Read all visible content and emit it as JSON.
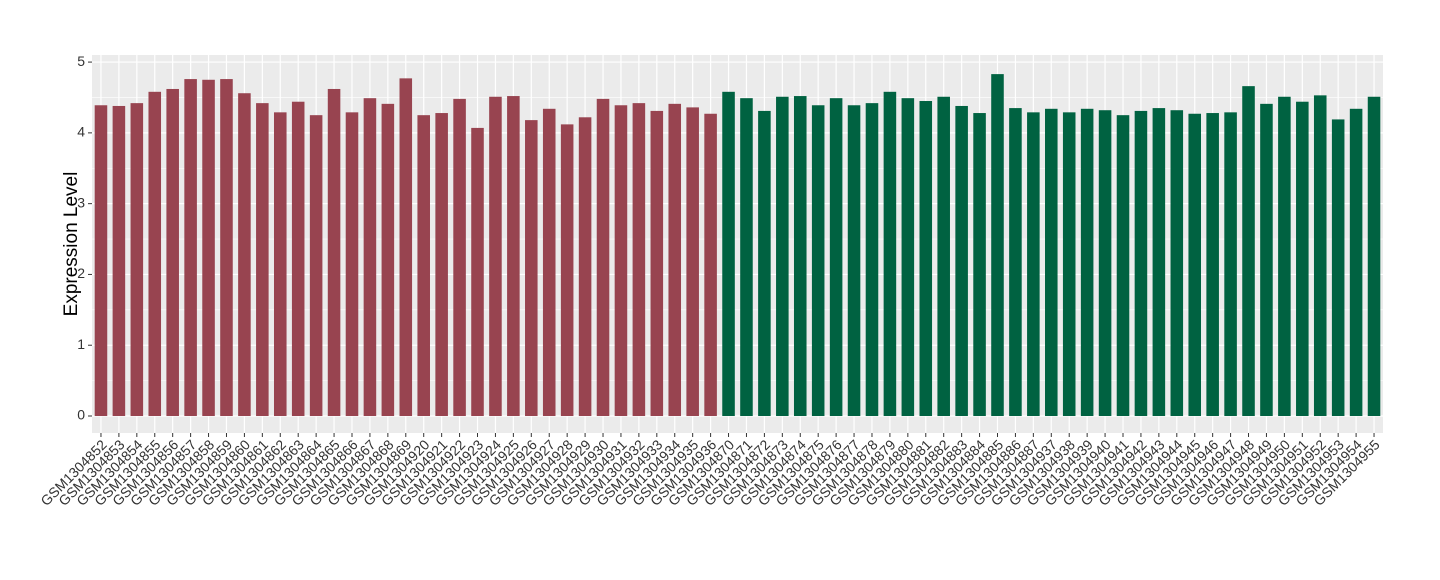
{
  "chart_data": {
    "type": "bar",
    "ylabel": "Expression Level",
    "categories": [
      "GSM1304852",
      "GSM1304853",
      "GSM1304854",
      "GSM1304855",
      "GSM1304856",
      "GSM1304857",
      "GSM1304858",
      "GSM1304859",
      "GSM1304860",
      "GSM1304861",
      "GSM1304862",
      "GSM1304863",
      "GSM1304864",
      "GSM1304865",
      "GSM1304866",
      "GSM1304867",
      "GSM1304868",
      "GSM1304869",
      "GSM1304920",
      "GSM1304921",
      "GSM1304922",
      "GSM1304923",
      "GSM1304924",
      "GSM1304925",
      "GSM1304926",
      "GSM1304927",
      "GSM1304928",
      "GSM1304929",
      "GSM1304930",
      "GSM1304931",
      "GSM1304932",
      "GSM1304933",
      "GSM1304934",
      "GSM1304935",
      "GSM1304936",
      "GSM1304870",
      "GSM1304871",
      "GSM1304872",
      "GSM1304873",
      "GSM1304874",
      "GSM1304875",
      "GSM1304876",
      "GSM1304877",
      "GSM1304878",
      "GSM1304879",
      "GSM1304880",
      "GSM1304881",
      "GSM1304882",
      "GSM1304883",
      "GSM1304884",
      "GSM1304885",
      "GSM1304886",
      "GSM1304887",
      "GSM1304937",
      "GSM1304938",
      "GSM1304939",
      "GSM1304940",
      "GSM1304941",
      "GSM1304942",
      "GSM1304943",
      "GSM1304944",
      "GSM1304945",
      "GSM1304946",
      "GSM1304947",
      "GSM1304948",
      "GSM1304949",
      "GSM1304950",
      "GSM1304951",
      "GSM1304952",
      "GSM1304953",
      "GSM1304954",
      "GSM1304955"
    ],
    "values": [
      4.39,
      4.38,
      4.42,
      4.58,
      4.62,
      4.76,
      4.75,
      4.76,
      4.56,
      4.42,
      4.29,
      4.44,
      4.25,
      4.62,
      4.29,
      4.49,
      4.41,
      4.77,
      4.25,
      4.28,
      4.48,
      4.07,
      4.51,
      4.52,
      4.18,
      4.34,
      4.12,
      4.22,
      4.48,
      4.39,
      4.42,
      4.31,
      4.41,
      4.36,
      4.27,
      4.58,
      4.49,
      4.31,
      4.51,
      4.52,
      4.39,
      4.49,
      4.39,
      4.42,
      4.58,
      4.49,
      4.45,
      4.51,
      4.38,
      4.28,
      4.83,
      4.35,
      4.29,
      4.34,
      4.29,
      4.34,
      4.32,
      4.25,
      4.31,
      4.35,
      4.32,
      4.27,
      4.28,
      4.29,
      4.66,
      4.41,
      4.51,
      4.44,
      4.53,
      4.19,
      4.34,
      4.51
    ],
    "colors": [
      "#984450",
      "#984450",
      "#984450",
      "#984450",
      "#984450",
      "#984450",
      "#984450",
      "#984450",
      "#984450",
      "#984450",
      "#984450",
      "#984450",
      "#984450",
      "#984450",
      "#984450",
      "#984450",
      "#984450",
      "#984450",
      "#984450",
      "#984450",
      "#984450",
      "#984450",
      "#984450",
      "#984450",
      "#984450",
      "#984450",
      "#984450",
      "#984450",
      "#984450",
      "#984450",
      "#984450",
      "#984450",
      "#984450",
      "#984450",
      "#984450",
      "#006241",
      "#006241",
      "#006241",
      "#006241",
      "#006241",
      "#006241",
      "#006241",
      "#006241",
      "#006241",
      "#006241",
      "#006241",
      "#006241",
      "#006241",
      "#006241",
      "#006241",
      "#006241",
      "#006241",
      "#006241",
      "#006241",
      "#006241",
      "#006241",
      "#006241",
      "#006241",
      "#006241",
      "#006241",
      "#006241",
      "#006241",
      "#006241",
      "#006241",
      "#006241",
      "#006241",
      "#006241",
      "#006241",
      "#006241",
      "#006241",
      "#006241",
      "#006241"
    ],
    "ylim": [
      -0.24,
      5.1
    ],
    "yticks": [
      0,
      1,
      2,
      3,
      4,
      5
    ],
    "grid": true
  }
}
